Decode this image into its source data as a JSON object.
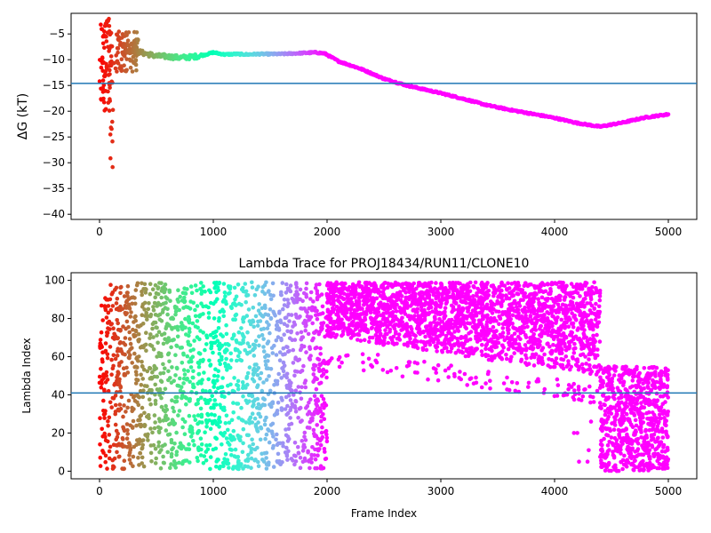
{
  "chart_data": [
    {
      "type": "scatter",
      "title": "",
      "xlabel": "",
      "ylabel": "ΔG (kT)",
      "xlim": [
        -250,
        5250
      ],
      "ylim": [
        -41,
        -1
      ],
      "xticks": [
        "0",
        "1000",
        "2000",
        "3000",
        "4000",
        "5000"
      ],
      "xtick_values": [
        0,
        1000,
        2000,
        3000,
        4000,
        5000
      ],
      "yticks": [
        "−40",
        "−35",
        "−30",
        "−25",
        "−20",
        "−15",
        "−10",
        "−5"
      ],
      "ytick_values": [
        -40,
        -35,
        -30,
        -25,
        -20,
        -15,
        -10,
        -5
      ],
      "hline": -14.6,
      "hline_color": "#1f77b4",
      "colormap": "rainbow",
      "curve_points": [
        [
          200,
          -8.5
        ],
        [
          300,
          -8.2
        ],
        [
          400,
          -8.8
        ],
        [
          500,
          -9.3
        ],
        [
          600,
          -9.4
        ],
        [
          700,
          -9.6
        ],
        [
          800,
          -9.5
        ],
        [
          900,
          -9.2
        ],
        [
          1000,
          -8.6
        ],
        [
          1100,
          -9.0
        ],
        [
          1200,
          -8.9
        ],
        [
          1300,
          -9.0
        ],
        [
          1400,
          -8.9
        ],
        [
          1500,
          -8.9
        ],
        [
          1600,
          -8.9
        ],
        [
          1700,
          -8.8
        ],
        [
          1800,
          -8.7
        ],
        [
          1900,
          -8.6
        ],
        [
          1980,
          -8.8
        ],
        [
          2100,
          -10.3
        ],
        [
          2300,
          -11.8
        ],
        [
          2500,
          -13.7
        ],
        [
          2700,
          -15.0
        ],
        [
          3000,
          -16.5
        ],
        [
          3200,
          -17.6
        ],
        [
          3400,
          -18.8
        ],
        [
          3600,
          -19.7
        ],
        [
          3800,
          -20.5
        ],
        [
          4000,
          -21.3
        ],
        [
          4200,
          -22.3
        ],
        [
          4400,
          -23.0
        ],
        [
          4600,
          -22.2
        ],
        [
          4800,
          -21.2
        ],
        [
          5000,
          -20.6
        ]
      ],
      "early_scatter_y_range": [
        -31,
        -2
      ]
    },
    {
      "type": "scatter",
      "title": "Lambda Trace for PROJ18434/RUN11/CLONE10",
      "xlabel": "Frame Index",
      "ylabel": "Lambda Index",
      "xlim": [
        -250,
        5250
      ],
      "ylim": [
        -4,
        104
      ],
      "xticks": [
        "0",
        "1000",
        "2000",
        "3000",
        "4000",
        "5000"
      ],
      "xtick_values": [
        0,
        1000,
        2000,
        3000,
        4000,
        5000
      ],
      "yticks": [
        "0",
        "20",
        "40",
        "60",
        "80",
        "100"
      ],
      "ytick_values": [
        0,
        20,
        40,
        60,
        80,
        100
      ],
      "hline": 41,
      "hline_color": "#1f77b4",
      "colormap": "rainbow",
      "segments": [
        {
          "x_range": [
            0,
            2000
          ],
          "y_range": [
            1,
            99
          ],
          "note_density": "medium"
        },
        {
          "x_range": [
            1780,
            2000
          ],
          "y_range": [
            0,
            60
          ]
        },
        {
          "x_range": [
            2000,
            4400
          ],
          "y_top": 99,
          "y_bottom_start": 70,
          "y_bottom_end": 50
        },
        {
          "x_range": [
            4400,
            5000
          ],
          "y_range": [
            0,
            56
          ]
        }
      ]
    }
  ]
}
